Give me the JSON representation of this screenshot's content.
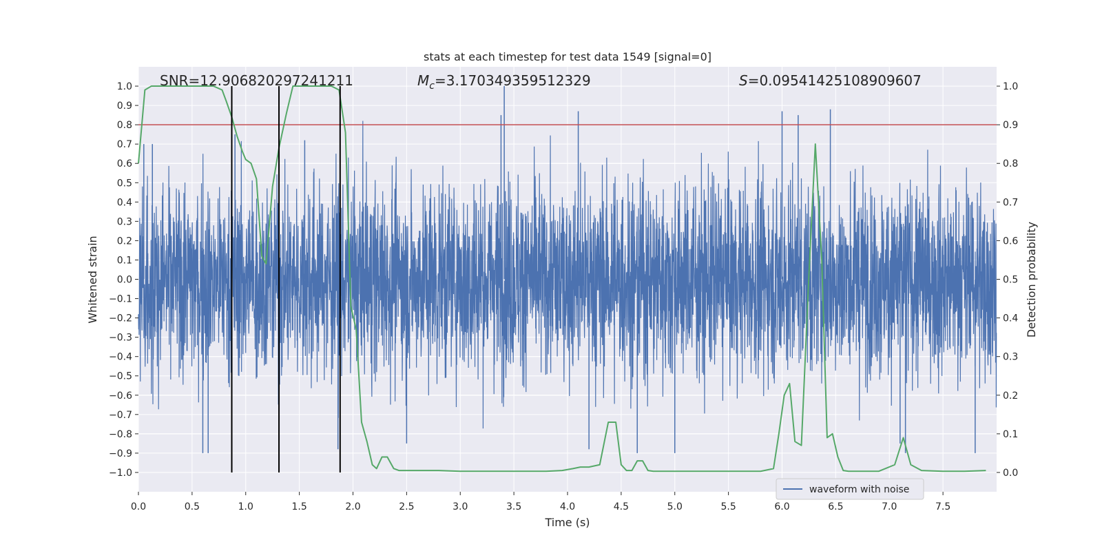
{
  "chart_data": {
    "type": "line",
    "title": "stats at each timestep for test data 1549 [signal=0]",
    "xlabel": "Time (s)",
    "ylabel_left": "Whitened strain",
    "ylabel_right": "Detection probability",
    "xlim": [
      0,
      8
    ],
    "ylim_left": [
      -1.1,
      1.1
    ],
    "ylim_right": [
      -0.05,
      1.05
    ],
    "x_ticks": [
      0.0,
      0.5,
      1.0,
      1.5,
      2.0,
      2.5,
      3.0,
      3.5,
      4.0,
      4.5,
      5.0,
      5.5,
      6.0,
      6.5,
      7.0,
      7.5
    ],
    "x_tick_labels": [
      "0.0",
      "0.5",
      "1.0",
      "1.5",
      "2.0",
      "2.5",
      "3.0",
      "3.5",
      "4.0",
      "4.5",
      "5.0",
      "5.5",
      "6.0",
      "6.5",
      "7.0",
      "7.5"
    ],
    "y_left_ticks": [
      1.0,
      0.9,
      0.8,
      0.7,
      0.6,
      0.5,
      0.4,
      0.3,
      0.2,
      0.1,
      0.0,
      -0.1,
      -0.2,
      -0.3,
      -0.4,
      -0.5,
      -0.6,
      -0.7,
      -0.8,
      -0.9,
      -1.0
    ],
    "y_left_tick_labels": [
      "1.0",
      "0.9",
      "0.8",
      "0.7",
      "0.6",
      "0.5",
      "0.4",
      "0.3",
      "0.2",
      "0.1",
      "0.0",
      "−0.1",
      "−0.2",
      "−0.3",
      "−0.4",
      "−0.5",
      "−0.6",
      "−0.7",
      "−0.8",
      "−0.9",
      "−1.0"
    ],
    "y_right_ticks": [
      1.0,
      0.9,
      0.8,
      0.7,
      0.6,
      0.5,
      0.4,
      0.3,
      0.2,
      0.1,
      0.0
    ],
    "y_right_tick_labels": [
      "1.0",
      "0.9",
      "0.8",
      "0.7",
      "0.6",
      "0.5",
      "0.4",
      "0.3",
      "0.2",
      "0.1",
      "0.0"
    ],
    "grid": true,
    "annotations": {
      "snr": "SNR=12.906820297241211",
      "mc_symbol": "M",
      "mc_subscript": "c",
      "mc_value": "=3.170349359512329",
      "s_symbol": "S",
      "s_value": "=0.09541425108909607"
    },
    "threshold": {
      "value": 0.9,
      "axis": "right",
      "color": "#c44e52"
    },
    "vertical_markers": {
      "x": [
        0.87,
        1.31,
        1.88
      ],
      "color": "#000000"
    },
    "legend": {
      "position": "lower-right",
      "entries": [
        "waveform with noise"
      ]
    },
    "series": [
      {
        "name": "waveform with noise",
        "axis": "left",
        "color": "#4c72b0",
        "kind": "dense-noise",
        "typical_amplitude": 0.45,
        "peak_spikes": [
          {
            "x": 0.05,
            "y": 0.7
          },
          {
            "x": 0.13,
            "y": 0.7
          },
          {
            "x": 0.6,
            "y": -0.9
          },
          {
            "x": 0.65,
            "y": -0.9
          },
          {
            "x": 0.9,
            "y": 0.75
          },
          {
            "x": 1.55,
            "y": 0.72
          },
          {
            "x": 1.86,
            "y": -0.88
          },
          {
            "x": 2.5,
            "y": -0.85
          },
          {
            "x": 3.38,
            "y": 0.85
          },
          {
            "x": 3.41,
            "y": 1.0
          },
          {
            "x": 4.1,
            "y": 0.87
          },
          {
            "x": 4.2,
            "y": -0.88
          },
          {
            "x": 4.65,
            "y": -0.9
          },
          {
            "x": 5.0,
            "y": -0.9
          },
          {
            "x": 6.0,
            "y": 0.87
          },
          {
            "x": 6.15,
            "y": 0.85
          },
          {
            "x": 6.45,
            "y": 0.88
          },
          {
            "x": 7.1,
            "y": -0.85
          },
          {
            "x": 7.15,
            "y": -0.9
          },
          {
            "x": 7.8,
            "y": -0.9
          }
        ]
      },
      {
        "name": "",
        "axis": "right",
        "color": "#55a868",
        "x": [
          0.0,
          0.06,
          0.12,
          0.2,
          0.3,
          0.4,
          0.5,
          0.6,
          0.7,
          0.78,
          0.82,
          0.87,
          0.92,
          0.97,
          1.0,
          1.05,
          1.1,
          1.15,
          1.19,
          1.25,
          1.31,
          1.38,
          1.44,
          1.5,
          1.6,
          1.7,
          1.8,
          1.87,
          1.93,
          1.98,
          2.03,
          2.08,
          2.13,
          2.18,
          2.22,
          2.27,
          2.32,
          2.38,
          2.43,
          2.5,
          2.6,
          2.8,
          3.0,
          3.2,
          3.4,
          3.6,
          3.8,
          3.95,
          4.05,
          4.12,
          4.2,
          4.3,
          4.38,
          4.45,
          4.5,
          4.55,
          4.6,
          4.65,
          4.7,
          4.75,
          4.8,
          4.9,
          5.0,
          5.2,
          5.4,
          5.5,
          5.6,
          5.8,
          5.92,
          5.97,
          6.02,
          6.07,
          6.12,
          6.18,
          6.25,
          6.31,
          6.37,
          6.42,
          6.47,
          6.52,
          6.57,
          6.62,
          6.7,
          6.9,
          7.05,
          7.13,
          7.2,
          7.3,
          7.5,
          7.7,
          7.9
        ],
        "y": [
          0.8,
          0.99,
          1.0,
          1.0,
          1.0,
          1.0,
          1.0,
          1.0,
          1.0,
          0.99,
          0.96,
          0.92,
          0.87,
          0.83,
          0.81,
          0.8,
          0.76,
          0.56,
          0.54,
          0.74,
          0.84,
          0.93,
          1.0,
          1.0,
          1.0,
          1.0,
          1.0,
          0.99,
          0.88,
          0.43,
          0.37,
          0.13,
          0.08,
          0.02,
          0.01,
          0.04,
          0.04,
          0.01,
          0.005,
          0.005,
          0.005,
          0.005,
          0.003,
          0.003,
          0.003,
          0.003,
          0.003,
          0.005,
          0.01,
          0.014,
          0.014,
          0.02,
          0.13,
          0.13,
          0.02,
          0.005,
          0.005,
          0.03,
          0.03,
          0.005,
          0.003,
          0.003,
          0.003,
          0.003,
          0.003,
          0.003,
          0.003,
          0.003,
          0.01,
          0.1,
          0.2,
          0.23,
          0.08,
          0.07,
          0.51,
          0.85,
          0.55,
          0.09,
          0.1,
          0.04,
          0.005,
          0.003,
          0.003,
          0.003,
          0.02,
          0.09,
          0.02,
          0.005,
          0.003,
          0.003,
          0.005
        ]
      }
    ]
  }
}
